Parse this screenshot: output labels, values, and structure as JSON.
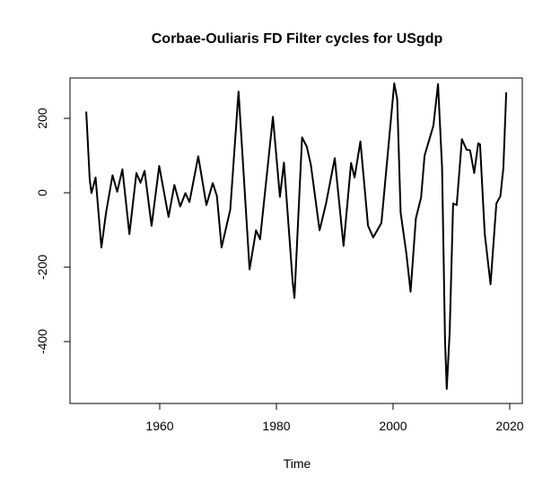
{
  "chart_data": {
    "type": "line",
    "title": "Corbae-Ouliaris FD Filter cycles for USgdp",
    "xlabel": "Time",
    "ylabel": "",
    "xlim": [
      1947,
      2020
    ],
    "ylim": [
      -550,
      310
    ],
    "xticks": [
      1960,
      1980,
      2000,
      2020
    ],
    "yticks": [
      -400,
      -200,
      0,
      200
    ],
    "grid": false,
    "line_color": "#000000",
    "series": [
      {
        "x": [
          1947.4,
          1948.0,
          1948.3,
          1949.0,
          1950.0,
          1950.8,
          1951.9,
          1952.7,
          1953.6,
          1954.8,
          1956.0,
          1956.7,
          1957.4,
          1958.6,
          1959.9,
          1961.5,
          1962.5,
          1963.5,
          1964.4,
          1965.1,
          1966.6,
          1968.0,
          1969.1,
          1969.8,
          1970.6,
          1972.1,
          1973.5,
          1975.4,
          1976.5,
          1977.2,
          1979.4,
          1980.6,
          1981.3,
          1982.8,
          1983.1,
          1984.4,
          1985.2,
          1985.9,
          1987.4,
          1988.5,
          1990.0,
          1991.5,
          1992.8,
          1993.4,
          1994.4,
          1995.7,
          1996.6,
          1998.0,
          2000.2,
          2000.7,
          2001.3,
          2002.3,
          2003.0,
          2003.9,
          2004.8,
          2005.4,
          2006.9,
          2007.7,
          2008.4,
          2008.9,
          2009.2,
          2009.7,
          2010.3,
          2010.9,
          2011.8,
          2012.6,
          2013.2,
          2013.9,
          2014.6,
          2014.9,
          2015.7,
          2016.7,
          2017.7,
          2018.4,
          2018.9,
          2019.4
        ],
        "y": [
          218,
          35,
          -1,
          41,
          -147,
          -53,
          47,
          3,
          63,
          -111,
          53,
          27,
          59,
          -89,
          72,
          -65,
          21,
          -37,
          -1,
          -25,
          98,
          -33,
          26,
          -9,
          -147,
          -45,
          272,
          -206,
          -101,
          -125,
          204,
          -11,
          81,
          -242,
          -283,
          149,
          124,
          75,
          -101,
          -29,
          93,
          -143,
          80,
          41,
          138,
          -89,
          -120,
          -81,
          294,
          252,
          -53,
          -165,
          -266,
          -69,
          -13,
          100,
          180,
          292,
          67,
          -398,
          -527,
          -373,
          -29,
          -33,
          144,
          116,
          114,
          53,
          133,
          130,
          -109,
          -246,
          -29,
          -9,
          67,
          270
        ]
      }
    ]
  }
}
